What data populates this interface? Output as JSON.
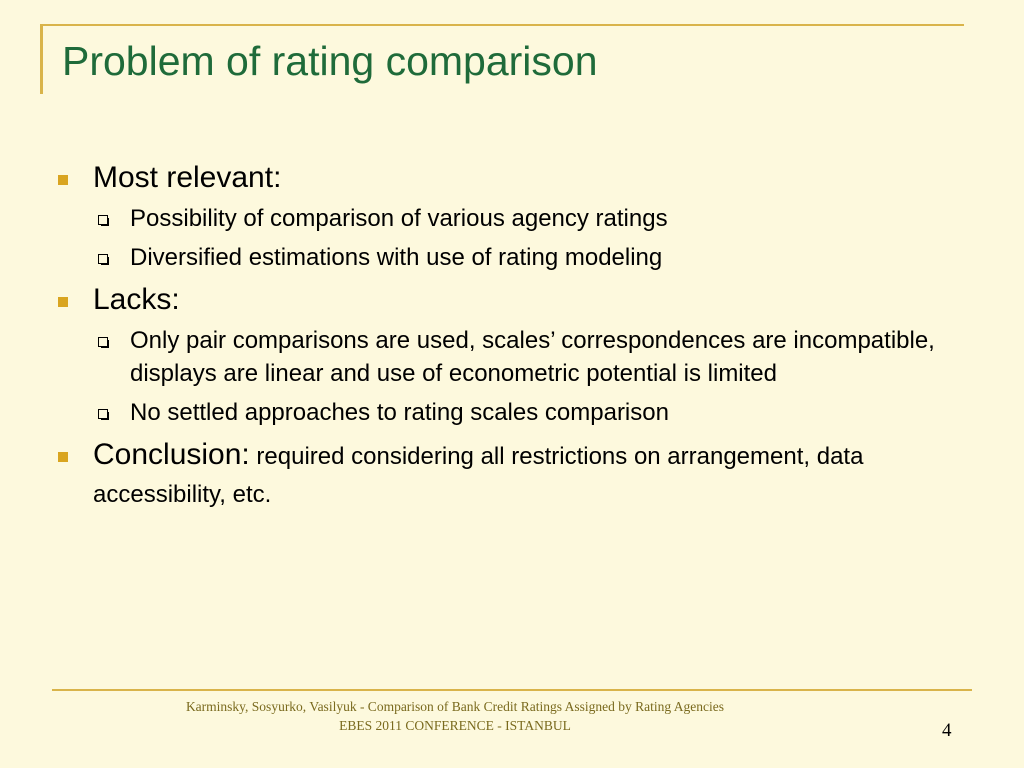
{
  "slide": {
    "title": "Problem of rating comparison",
    "sections": [
      {
        "heading": "Most relevant:",
        "items": [
          "Possibility of comparison of various agency ratings",
          "Diversified estimations with use of  rating modeling"
        ]
      },
      {
        "heading": "Lacks:",
        "items": [
          "Only pair comparisons are used, scales’ correspondences are incompatible, displays are linear and use of econometric potential is limited",
          " No settled approaches to rating scales comparison"
        ]
      }
    ],
    "conclusion": {
      "heading": "Conclusion:",
      "text": " required considering all restrictions on arrangement, data accessibility, etc."
    },
    "footer": {
      "line1": "Karminsky, Sosyurko, Vasilyuk - Comparison of Bank Credit Ratings Assigned by Rating Agencies",
      "line2": "EBES 2011 CONFERENCE - ISTANBUL"
    },
    "page_number": "4"
  },
  "colors": {
    "background": "#fdf9dd",
    "title": "#1f6b3a",
    "accent_lines": "#d9b44a",
    "bullet": "#d9a520",
    "footer_text": "#7a6a1e"
  }
}
